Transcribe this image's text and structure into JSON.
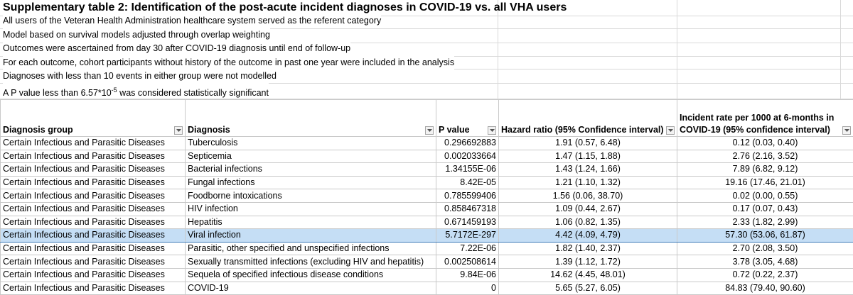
{
  "title": "Supplementary table 2: Identification of the post-acute incident diagnoses in COVID-19 vs. all VHA users",
  "notes": [
    "All users of the Veteran Health Administration healthcare system served as the referent category",
    "Model based on survival models adjusted through overlap weighting",
    "Outcomes were ascertained from day 30 after COVID-19 diagnosis until end of follow-up",
    "For each outcome, cohort participants without history of the outcome in past one year were included in the analysis",
    "Diagnoses with less than 10 events in either group were not modelled"
  ],
  "significance_note": {
    "prefix": "A P value less than 6.57*10",
    "exponent": "-5",
    "suffix": " was considered statistically significant"
  },
  "columns": [
    "Diagnosis group",
    "Diagnosis",
    "P value",
    "Hazard ratio (95% Confidence interval)",
    "Incident rate per 1000 at 6-months in COVID-19 (95% confidence interval)"
  ],
  "rows": [
    {
      "group": "Certain Infectious and Parasitic Diseases",
      "diagnosis": "Tuberculosis",
      "p": "0.296692883",
      "hr": "1.91 (0.57, 6.48)",
      "rate": "0.12 (0.03, 0.40)"
    },
    {
      "group": "Certain Infectious and Parasitic Diseases",
      "diagnosis": "Septicemia",
      "p": "0.002033664",
      "hr": "1.47 (1.15, 1.88)",
      "rate": "2.76 (2.16, 3.52)"
    },
    {
      "group": "Certain Infectious and Parasitic Diseases",
      "diagnosis": "Bacterial infections",
      "p": "1.34155E-06",
      "hr": "1.43 (1.24, 1.66)",
      "rate": "7.89 (6.82, 9.12)"
    },
    {
      "group": "Certain Infectious and Parasitic Diseases",
      "diagnosis": "Fungal infections",
      "p": "8.42E-05",
      "hr": "1.21 (1.10, 1.32)",
      "rate": "19.16 (17.46, 21.01)"
    },
    {
      "group": "Certain Infectious and Parasitic Diseases",
      "diagnosis": "Foodborne intoxications",
      "p": "0.785599406",
      "hr": "1.56 (0.06, 38.70)",
      "rate": "0.02 (0.00, 0.55)"
    },
    {
      "group": "Certain Infectious and Parasitic Diseases",
      "diagnosis": "HIV infection",
      "p": "0.858467318",
      "hr": "1.09 (0.44, 2.67)",
      "rate": "0.17 (0.07, 0.43)"
    },
    {
      "group": "Certain Infectious and Parasitic Diseases",
      "diagnosis": "Hepatitis",
      "p": "0.671459193",
      "hr": "1.06 (0.82, 1.35)",
      "rate": "2.33 (1.82, 2.99)"
    },
    {
      "group": "Certain Infectious and Parasitic Diseases",
      "diagnosis": "Viral infection",
      "p": "5.7172E-297",
      "hr": "4.42 (4.09, 4.79)",
      "rate": "57.30 (53.06, 61.87)"
    },
    {
      "group": "Certain Infectious and Parasitic Diseases",
      "diagnosis": "Parasitic, other specified and unspecified infections",
      "p": "7.22E-06",
      "hr": "1.82 (1.40, 2.37)",
      "rate": "2.70 (2.08, 3.50)"
    },
    {
      "group": "Certain Infectious and Parasitic Diseases",
      "diagnosis": "Sexually transmitted infections (excluding HIV and hepatitis)",
      "p": "0.002508614",
      "hr": "1.39 (1.12, 1.72)",
      "rate": "3.78 (3.05, 4.68)"
    },
    {
      "group": "Certain Infectious and Parasitic Diseases",
      "diagnosis": "Sequela of specified infectious disease conditions",
      "p": "9.84E-06",
      "hr": "14.62 (4.45, 48.01)",
      "rate": "0.72 (0.22, 2.37)"
    },
    {
      "group": "Certain Infectious and Parasitic Diseases",
      "diagnosis": "COVID-19",
      "p": "0",
      "hr": "5.65 (5.27, 6.05)",
      "rate": "84.83 (79.40, 90.60)"
    }
  ],
  "highlighted_row": "Viral infection",
  "colors": {
    "highlight": "#c5def5",
    "highlight_border": "#3d7ab8",
    "grid": "#d9d9d9"
  }
}
